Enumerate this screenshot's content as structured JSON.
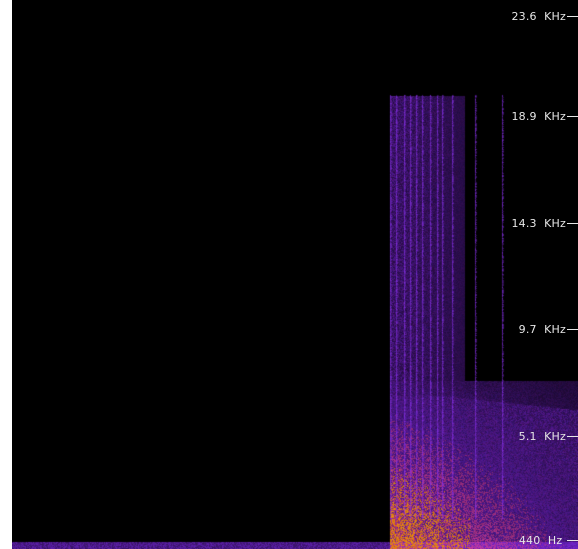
{
  "spectrogram": {
    "background_color": "#000000",
    "colormap": [
      "#000000",
      "#3a0a6e",
      "#7b2df0",
      "#8a3cff",
      "#c040a0",
      "#e06a10",
      "#f08a00"
    ],
    "frequency_axis": {
      "ticks": [
        {
          "label": "23.6  KHz",
          "value_hz": 23600
        },
        {
          "label": "18.9  KHz",
          "value_hz": 18900
        },
        {
          "label": "14.3  KHz",
          "value_hz": 14300
        },
        {
          "label": "9.7  KHz",
          "value_hz": 9700
        },
        {
          "label": "5.1  KHz",
          "value_hz": 5100
        },
        {
          "label": "440  Hz ",
          "value_hz": 440
        }
      ]
    }
  }
}
